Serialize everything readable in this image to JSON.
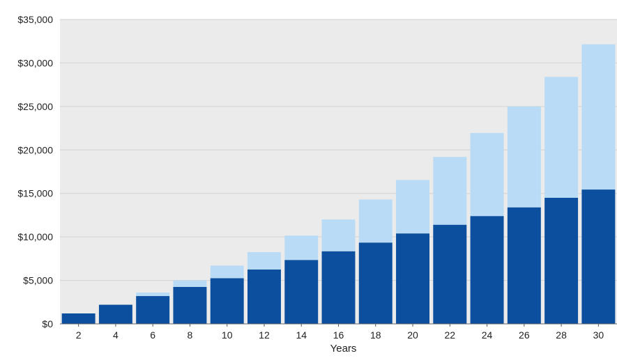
{
  "chart_data": {
    "type": "bar",
    "stacked": true,
    "title": "",
    "xlabel": "Years",
    "ylabel": "",
    "categories": [
      "2",
      "4",
      "6",
      "8",
      "10",
      "12",
      "14",
      "16",
      "18",
      "20",
      "22",
      "24",
      "26",
      "28",
      "30"
    ],
    "series": [
      {
        "color": "#0b4f9e",
        "values": [
          1200,
          2200,
          3200,
          4250,
          5250,
          6250,
          7350,
          8350,
          9350,
          10400,
          11400,
          12400,
          13400,
          14500,
          15450
        ]
      },
      {
        "color": "#b9dbf5",
        "values": [
          0,
          0,
          400,
          750,
          1450,
          2000,
          2800,
          3650,
          4950,
          6150,
          7800,
          9550,
          11600,
          13900,
          16700
        ]
      }
    ],
    "ylim": [
      0,
      35000
    ],
    "yticks": [
      0,
      5000,
      10000,
      15000,
      20000,
      25000,
      30000,
      35000
    ],
    "ytick_labels": [
      "$0",
      "$5,000",
      "$10,000",
      "$15,000",
      "$20,000",
      "$25,000",
      "$30,000",
      "$35,000"
    ],
    "grid": true,
    "plot_background": "#ebebeb",
    "gridline_color": "#d2d2d2"
  }
}
